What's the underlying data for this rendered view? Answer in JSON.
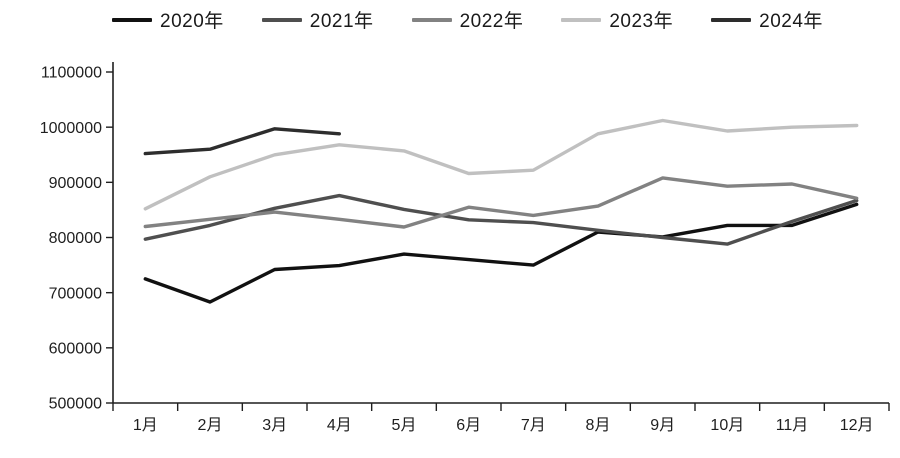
{
  "chart_data": {
    "type": "line",
    "title": "",
    "xlabel": "",
    "ylabel": "",
    "grid": false,
    "legend_position": "top",
    "categories": [
      "1月",
      "2月",
      "3月",
      "4月",
      "5月",
      "6月",
      "7月",
      "8月",
      "9月",
      "10月",
      "11月",
      "12月"
    ],
    "ylim": [
      500000,
      1100000
    ],
    "yticks": [
      500000,
      600000,
      700000,
      800000,
      900000,
      1000000,
      1100000
    ],
    "axis_color": "#1f1f1f",
    "series": [
      {
        "name": "2020年",
        "color": "#111111",
        "values": [
          725000,
          683000,
          742000,
          749000,
          770000,
          760000,
          750000,
          810000,
          801000,
          822000,
          822000,
          860000
        ]
      },
      {
        "name": "2021年",
        "color": "#4f4f4f",
        "values": [
          797000,
          822000,
          853000,
          876000,
          851000,
          832000,
          827000,
          813000,
          800000,
          788000,
          829000,
          867000
        ]
      },
      {
        "name": "2022年",
        "color": "#828282",
        "values": [
          820000,
          833000,
          846000,
          833000,
          819000,
          855000,
          840000,
          857000,
          908000,
          893000,
          897000,
          871000
        ]
      },
      {
        "name": "2023年",
        "color": "#c0c0c0",
        "values": [
          852000,
          910000,
          950000,
          968000,
          957000,
          916000,
          922000,
          988000,
          1012000,
          993000,
          1000000,
          1003000
        ]
      },
      {
        "name": "2024年",
        "color": "#2d2d2d",
        "values": [
          952000,
          960000,
          997000,
          988000,
          null,
          null,
          null,
          null,
          null,
          null,
          null,
          null
        ]
      }
    ]
  }
}
